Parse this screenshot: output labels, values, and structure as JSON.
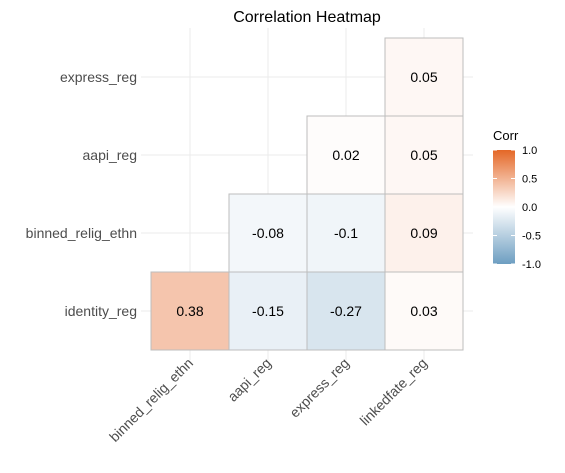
{
  "chart_data": {
    "type": "heatmap",
    "title": "Correlation Heatmap",
    "x_categories": [
      "binned_relig_ethn",
      "aapi_reg",
      "express_reg",
      "linkedfate_reg"
    ],
    "y_categories": [
      "identity_reg",
      "binned_relig_ethn",
      "aapi_reg",
      "express_reg"
    ],
    "cells": [
      {
        "x": "binned_relig_ethn",
        "y": "identity_reg",
        "value": 0.38,
        "label": "0.38"
      },
      {
        "x": "aapi_reg",
        "y": "identity_reg",
        "value": -0.15,
        "label": "-0.15"
      },
      {
        "x": "express_reg",
        "y": "identity_reg",
        "value": -0.27,
        "label": "-0.27"
      },
      {
        "x": "linkedfate_reg",
        "y": "identity_reg",
        "value": 0.03,
        "label": "0.03"
      },
      {
        "x": "aapi_reg",
        "y": "binned_relig_ethn",
        "value": -0.08,
        "label": "-0.08"
      },
      {
        "x": "express_reg",
        "y": "binned_relig_ethn",
        "value": -0.1,
        "label": "-0.1"
      },
      {
        "x": "linkedfate_reg",
        "y": "binned_relig_ethn",
        "value": 0.09,
        "label": "0.09"
      },
      {
        "x": "express_reg",
        "y": "aapi_reg",
        "value": 0.02,
        "label": "0.02"
      },
      {
        "x": "linkedfate_reg",
        "y": "aapi_reg",
        "value": 0.05,
        "label": "0.05"
      },
      {
        "x": "linkedfate_reg",
        "y": "express_reg",
        "value": 0.05,
        "label": "0.05"
      }
    ],
    "legend": {
      "title": "Corr",
      "ticks": [
        {
          "value": 1,
          "label": "1.0"
        },
        {
          "value": 0.5,
          "label": "0.5"
        },
        {
          "value": 0,
          "label": "0.0"
        },
        {
          "value": -0.5,
          "label": "-0.5"
        },
        {
          "value": -1,
          "label": "-1.0"
        }
      ],
      "range": [
        -1,
        1
      ],
      "placement": "right"
    },
    "colors": {
      "low": "#6d9ec1",
      "mid": "#ffffff",
      "high": "#e46726"
    },
    "grid": true
  }
}
